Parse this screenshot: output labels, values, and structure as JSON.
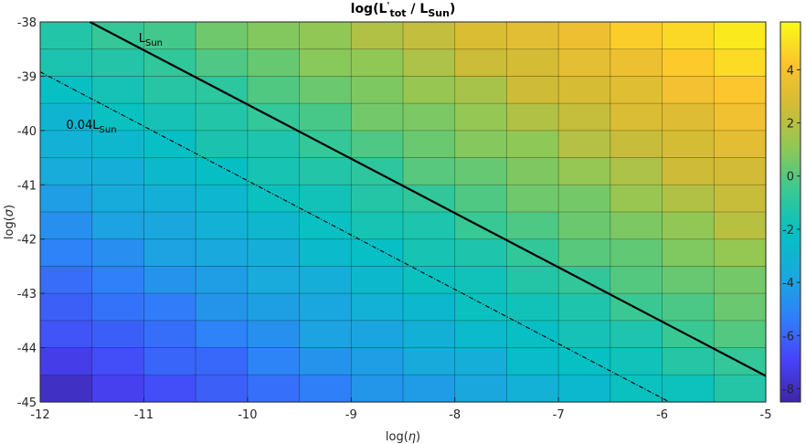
{
  "chart_data": {
    "type": "heatmap",
    "title": {
      "main": "log(L",
      "sup": "'",
      "sub1": "tot",
      "mid": " / L",
      "sub2": "Sun",
      "end": ")"
    },
    "xlabel": {
      "pre": "log(",
      "sym": "η",
      "post": ")"
    },
    "ylabel": {
      "pre": "log(",
      "sym": "σ",
      "post": ")"
    },
    "xlim": [
      -12,
      -5
    ],
    "ylim": [
      -45,
      -38
    ],
    "x_ticks": [
      "-12",
      "-11",
      "-10",
      "-9",
      "-8",
      "-7",
      "-6",
      "-5"
    ],
    "y_ticks": [
      "-45",
      "-44",
      "-43",
      "-42",
      "-41",
      "-40",
      "-39",
      "-38"
    ],
    "grid": {
      "x_step": 0.5,
      "y_step": 0.5
    },
    "colorbar": {
      "range": [
        -8.5,
        5.8
      ],
      "ticks": [
        "-8",
        "-6",
        "-4",
        "-2",
        "0",
        "2",
        "4"
      ]
    },
    "colormap": [
      "#3e26a8",
      "#4743f8",
      "#2f80f9",
      "#19a9dd",
      "#06c0c4",
      "#39c893",
      "#8dc857",
      "#d2bb36",
      "#fcc32f",
      "#f9fb15"
    ],
    "data_model": {
      "description_free": true,
      "value_at": {
        "x0": -12,
        "y0": -45,
        "v0": -8.2,
        "dx": 1.0,
        "dy": 1.0,
        "jitter": 0.25
      }
    },
    "lines": [
      {
        "name": "L_Sun",
        "style": "solid",
        "x": [
          -11.52,
          -5
        ],
        "y": [
          -38,
          -44.52
        ]
      },
      {
        "name": "0.04L_Sun",
        "style": "dashdot",
        "x": [
          -12,
          -5.93
        ],
        "y": [
          -38.92,
          -45
        ]
      }
    ],
    "annotations": [
      {
        "text": "L",
        "sub": "Sun",
        "x": -11.05,
        "y": -38.2
      },
      {
        "text": "0.04L",
        "sub": "Sun",
        "x": -11.75,
        "y": -39.8
      }
    ]
  }
}
